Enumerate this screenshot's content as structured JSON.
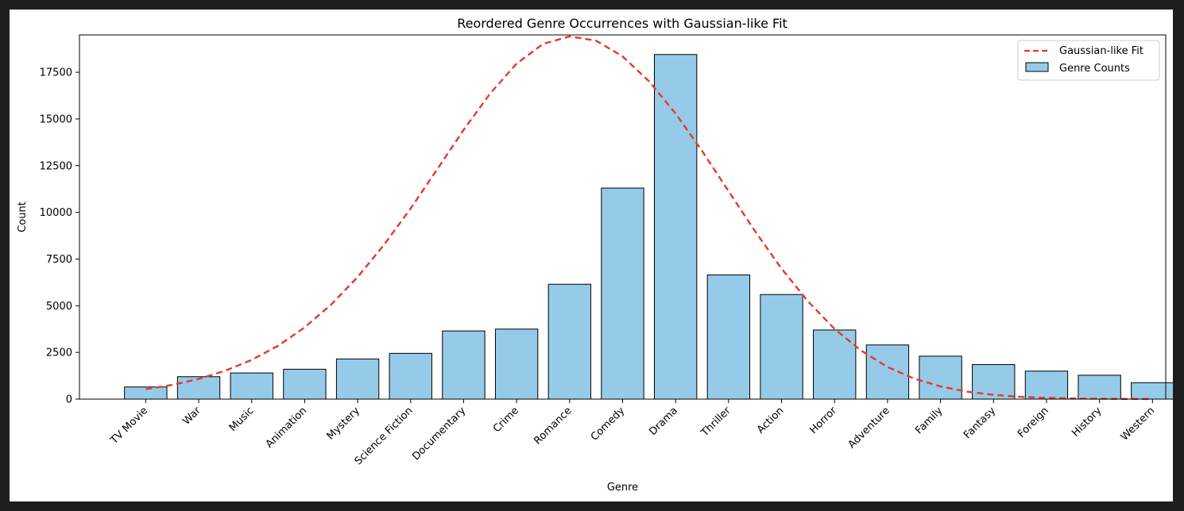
{
  "chart_data": {
    "type": "bar",
    "title": "Reordered Genre Occurrences with Gaussian-like Fit",
    "xlabel": "Genre",
    "ylabel": "Count",
    "ylim": [
      0,
      19500
    ],
    "yticks": [
      0,
      2500,
      5000,
      7500,
      10000,
      12500,
      15000,
      17500
    ],
    "categories": [
      "TV Movie",
      "War",
      "Music",
      "Animation",
      "Mystery",
      "Science Fiction",
      "Documentary",
      "Crime",
      "Romance",
      "Comedy",
      "Drama",
      "Thriller",
      "Action",
      "Horror",
      "Adventure",
      "Family",
      "Fantasy",
      "Foreign",
      "History",
      "Western"
    ],
    "series": [
      {
        "name": "Genre Counts",
        "kind": "bar",
        "color": "#95cbe8",
        "edgecolor": "#000000",
        "values": [
          650,
          1200,
          1400,
          1600,
          2150,
          2450,
          3650,
          3750,
          6150,
          11300,
          18450,
          6650,
          5600,
          3700,
          2900,
          2300,
          1850,
          1500,
          1280,
          880
        ]
      },
      {
        "name": "Gaussian-like Fit",
        "kind": "line",
        "style": "dashed",
        "color": "#e8382a",
        "x": [
          0,
          0.5,
          1,
          1.5,
          2,
          2.5,
          3,
          3.5,
          4,
          4.5,
          5,
          5.5,
          6,
          6.5,
          7,
          7.5,
          8,
          8.5,
          9,
          9.5,
          10,
          10.5,
          11,
          11.5,
          12,
          12.5,
          13,
          13.5,
          14,
          14.5,
          15,
          15.5,
          16,
          16.5,
          17,
          17.5,
          18,
          18.5,
          19
        ],
        "values": [
          530,
          760,
          1080,
          1520,
          2100,
          2860,
          3840,
          5060,
          6540,
          8270,
          10210,
          12300,
          14420,
          16360,
          17960,
          19020,
          19420,
          19190,
          18350,
          17020,
          15290,
          13290,
          11130,
          8990,
          6990,
          5230,
          3760,
          2600,
          1720,
          1100,
          680,
          400,
          230,
          125,
          70,
          35,
          20,
          10,
          5
        ]
      }
    ],
    "legend": {
      "position": "top-right",
      "entries": [
        {
          "label": "Gaussian-like Fit",
          "kind": "line"
        },
        {
          "label": "Genre Counts",
          "kind": "bar"
        }
      ]
    },
    "grid": false
  }
}
